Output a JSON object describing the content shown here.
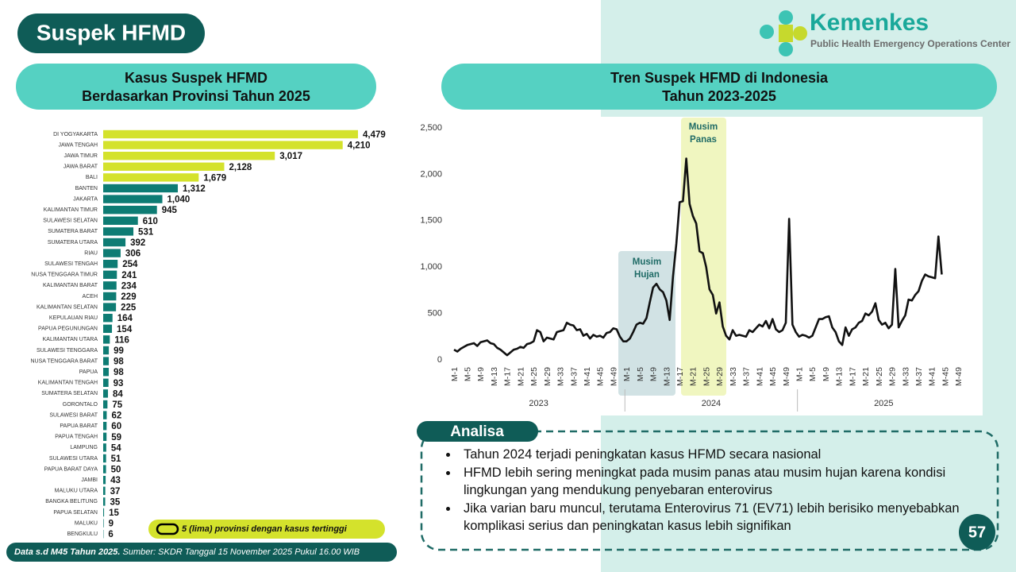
{
  "header": {
    "title": "Suspek HFMD",
    "logo_name": "Kemenkes",
    "logo_sub": "Public Health Emergency Operations Center"
  },
  "chart_data": [
    {
      "type": "hbar",
      "title": [
        "Kasus Suspek HFMD",
        "Berdasarkan Provinsi Tahun 2025"
      ],
      "categories": [
        "DI YOGYAKARTA",
        "JAWA TENGAH",
        "JAWA TIMUR",
        "JAWA BARAT",
        "BALI",
        "BANTEN",
        "JAKARTA",
        "KALIMANTAN TIMUR",
        "SULAWESI SELATAN",
        "SUMATERA BARAT",
        "SUMATERA UTARA",
        "RIAU",
        "SULAWESI TENGAH",
        "NUSA TENGGARA TIMUR",
        "KALIMANTAN BARAT",
        "ACEH",
        "KALIMANTAN SELATAN",
        "KEPULAUAN RIAU",
        "PAPUA PEGUNUNGAN",
        "KALIMANTAN UTARA",
        "SULAWESI TENGGARA",
        "NUSA TENGGARA BARAT",
        "PAPUA",
        "KALIMANTAN TENGAH",
        "SUMATERA SELATAN",
        "GORONTALO",
        "SULAWESI BARAT",
        "PAPUA BARAT",
        "PAPUA TENGAH",
        "LAMPUNG",
        "SULAWESI UTARA",
        "PAPUA BARAT DAYA",
        "JAMBI",
        "MALUKU UTARA",
        "BANGKA BELITUNG",
        "PAPUA SELATAN",
        "MALUKU",
        "BENGKULU"
      ],
      "values": [
        4479,
        4210,
        3017,
        2128,
        1679,
        1312,
        1040,
        945,
        610,
        531,
        392,
        306,
        254,
        241,
        234,
        229,
        225,
        164,
        154,
        116,
        99,
        98,
        98,
        93,
        84,
        75,
        62,
        60,
        59,
        54,
        51,
        50,
        43,
        37,
        35,
        15,
        9,
        6
      ],
      "value_labels": [
        "4,479",
        "4,210",
        "3,017",
        "2,128",
        "1,679",
        "1,312",
        "1,040",
        "945",
        "610",
        "531",
        "392",
        "306",
        "254",
        "241",
        "234",
        "229",
        "225",
        "164",
        "154",
        "116",
        "99",
        "98",
        "98",
        "93",
        "84",
        "75",
        "62",
        "60",
        "59",
        "54",
        "51",
        "50",
        "43",
        "37",
        "35",
        "15",
        "9",
        "6"
      ],
      "colors": [
        "#d4e22c",
        "#d4e22c",
        "#d4e22c",
        "#d4e22c",
        "#d4e22c",
        "#0e7c74",
        "#0e7c74",
        "#0e7c74",
        "#0e7c74",
        "#0e7c74",
        "#0e7c74",
        "#0e7c74",
        "#0e7c74",
        "#0e7c74",
        "#0e7c74",
        "#0e7c74",
        "#0e7c74",
        "#0e7c74",
        "#0e7c74",
        "#0e7c74",
        "#0e7c74",
        "#0e7c74",
        "#0e7c74",
        "#0e7c74",
        "#0e7c74",
        "#0e7c74",
        "#0e7c74",
        "#0e7c74",
        "#0e7c74",
        "#0e7c74",
        "#0e7c74",
        "#0e7c74",
        "#0e7c74",
        "#0e7c74",
        "#0e7c74",
        "#0e7c74",
        "#0e7c74",
        "#0e7c74"
      ],
      "note": "5 (lima) provinsi dengan kasus tertinggi"
    },
    {
      "type": "line",
      "title": [
        "Tren Suspek HFMD di Indonesia",
        "Tahun 2023-2025"
      ],
      "categories": [
        "M-1",
        null,
        null,
        null,
        "M-5",
        null,
        null,
        null,
        "M-9",
        null,
        null,
        null,
        "M-13",
        null,
        null,
        null,
        "M-17",
        null,
        null,
        null,
        "M-21",
        null,
        null,
        null,
        "M-25",
        null,
        null,
        null,
        "M-29",
        null,
        null,
        null,
        "M-33",
        null,
        null,
        null,
        "M-37",
        null,
        null,
        null,
        "M-41",
        null,
        null,
        null,
        "M-45",
        null,
        null,
        null,
        "M-49",
        null,
        null,
        null,
        "M-1",
        null,
        null,
        null,
        "M-5",
        null,
        null,
        null,
        "M-9",
        null,
        null,
        null,
        "M-13",
        null,
        null,
        null,
        "M-17",
        null,
        null,
        null,
        "M-21",
        null,
        null,
        null,
        "M-25",
        null,
        null,
        null,
        "M-29",
        null,
        null,
        null,
        "M-33",
        null,
        null,
        null,
        "M-37",
        null,
        null,
        null,
        "M-41",
        null,
        null,
        null,
        "M-45",
        null,
        null,
        null,
        "M-49",
        null,
        null,
        null,
        "M-1",
        null,
        null,
        null,
        "M-5",
        null,
        null,
        null,
        "M-9",
        null,
        null,
        null,
        "M-13",
        null,
        null,
        null,
        "M-17",
        null,
        null,
        null,
        "M-21",
        null,
        null,
        null,
        "M-25",
        null,
        null,
        null,
        "M-29",
        null,
        null,
        null,
        "M-33",
        null,
        null,
        null,
        "M-37",
        null,
        null,
        null,
        "M-41",
        null,
        null,
        null,
        "M-45",
        null,
        null,
        null,
        "M-49",
        null,
        null,
        null
      ],
      "x_groups": [
        "2023",
        "2024",
        "2025"
      ],
      "values": [
        110,
        90,
        120,
        140,
        160,
        170,
        180,
        150,
        190,
        200,
        210,
        180,
        170,
        130,
        110,
        80,
        50,
        80,
        110,
        120,
        140,
        130,
        170,
        180,
        200,
        320,
        300,
        200,
        240,
        230,
        220,
        300,
        310,
        320,
        400,
        380,
        370,
        320,
        330,
        260,
        280,
        230,
        270,
        250,
        260,
        240,
        290,
        300,
        340,
        330,
        250,
        200,
        200,
        230,
        300,
        380,
        400,
        390,
        450,
        620,
        780,
        820,
        760,
        730,
        640,
        430,
        900,
        1250,
        1700,
        1710,
        2170,
        1680,
        1550,
        1470,
        1170,
        1150,
        1000,
        760,
        700,
        500,
        620,
        360,
        260,
        220,
        320,
        260,
        270,
        260,
        250,
        320,
        300,
        340,
        380,
        360,
        420,
        340,
        440,
        330,
        300,
        320,
        400,
        1520,
        380,
        300,
        250,
        270,
        260,
        240,
        260,
        350,
        440,
        440,
        460,
        470,
        350,
        300,
        200,
        160,
        350,
        260,
        330,
        350,
        400,
        420,
        500,
        480,
        520,
        610,
        430,
        380,
        400,
        340,
        380,
        980,
        350,
        420,
        480,
        650,
        640,
        700,
        740,
        850,
        920,
        900,
        890,
        880,
        1330,
        920,
        null,
        null,
        null,
        null,
        null,
        null,
        null,
        null
      ],
      "color": "#111111",
      "ylim": [
        0,
        2500
      ],
      "yticks": [
        0,
        500,
        {
          "value": 1000,
          "label": "1,000"
        },
        {
          "value": 1500,
          "label": "1,500"
        },
        {
          "value": 2000,
          "label": "2,000"
        },
        {
          "value": 2500,
          "label": "2,500"
        }
      ],
      "grid": false,
      "annotations": [
        [
          "Musim",
          "Hujan"
        ],
        [
          "Musim",
          "Panas"
        ]
      ]
    }
  ],
  "analysis": {
    "title": "Analisa",
    "bullets": [
      "Tahun 2024 terjadi peningkatan kasus HFMD secara nasional",
      "HFMD lebih sering meningkat pada musim panas atau musim hujan karena kondisi lingkungan yang mendukung penyebaran enterovirus",
      "Jika varian baru muncul, terutama Enterovirus 71 (EV71) lebih berisiko menyebabkan komplikasi serius dan peningkatan kasus lebih signifikan"
    ]
  },
  "footer": {
    "bold": "Data s.d M45 Tahun 2025.",
    "text": "Sumber: SKDR Tanggal 15 November 2025 Pukul 16.00 WIB"
  },
  "page_number": "57"
}
